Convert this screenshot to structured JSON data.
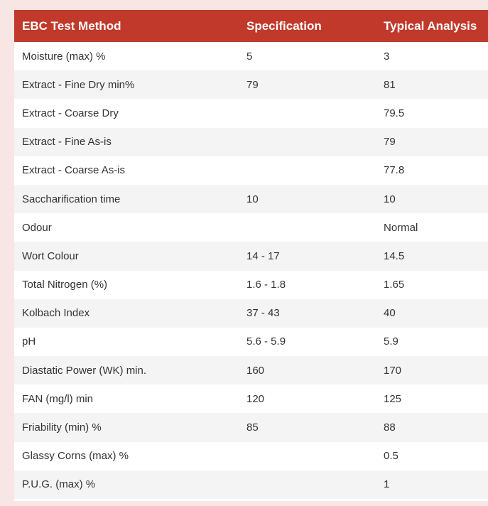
{
  "table": {
    "headers": [
      "EBC Test Method",
      "Specification",
      "Typical Analysis"
    ],
    "rows": [
      [
        "Moisture (max) %",
        "5",
        "3"
      ],
      [
        "Extract - Fine Dry min%",
        "79",
        "81"
      ],
      [
        "Extract - Coarse Dry",
        "",
        "79.5"
      ],
      [
        "Extract - Fine As-is",
        "",
        "79"
      ],
      [
        "Extract - Coarse As-is",
        "",
        "77.8"
      ],
      [
        "Saccharification time",
        "10",
        "10"
      ],
      [
        "Odour",
        "",
        "Normal"
      ],
      [
        "Wort Colour",
        "14 - 17",
        "14.5"
      ],
      [
        "Total Nitrogen (%)",
        "1.6 - 1.8",
        "1.65"
      ],
      [
        "Kolbach Index",
        "37 - 43",
        "40"
      ],
      [
        "pH",
        "5.6 - 5.9",
        "5.9"
      ],
      [
        "Diastatic Power (WK) min.",
        "160",
        "170"
      ],
      [
        "FAN (mg/l) min",
        "120",
        "125"
      ],
      [
        "Friability (min) %",
        "85",
        "88"
      ],
      [
        "Glassy Corns (max) %",
        "",
        "0.5"
      ],
      [
        "P.U.G. (max) %",
        "",
        "1"
      ]
    ]
  },
  "colors": {
    "header_bg": "#c0392b",
    "header_text": "#ffffff",
    "row_alt_bg": "#f4f4f4",
    "page_bg": "#f7e6e4",
    "cell_text": "#333333"
  }
}
